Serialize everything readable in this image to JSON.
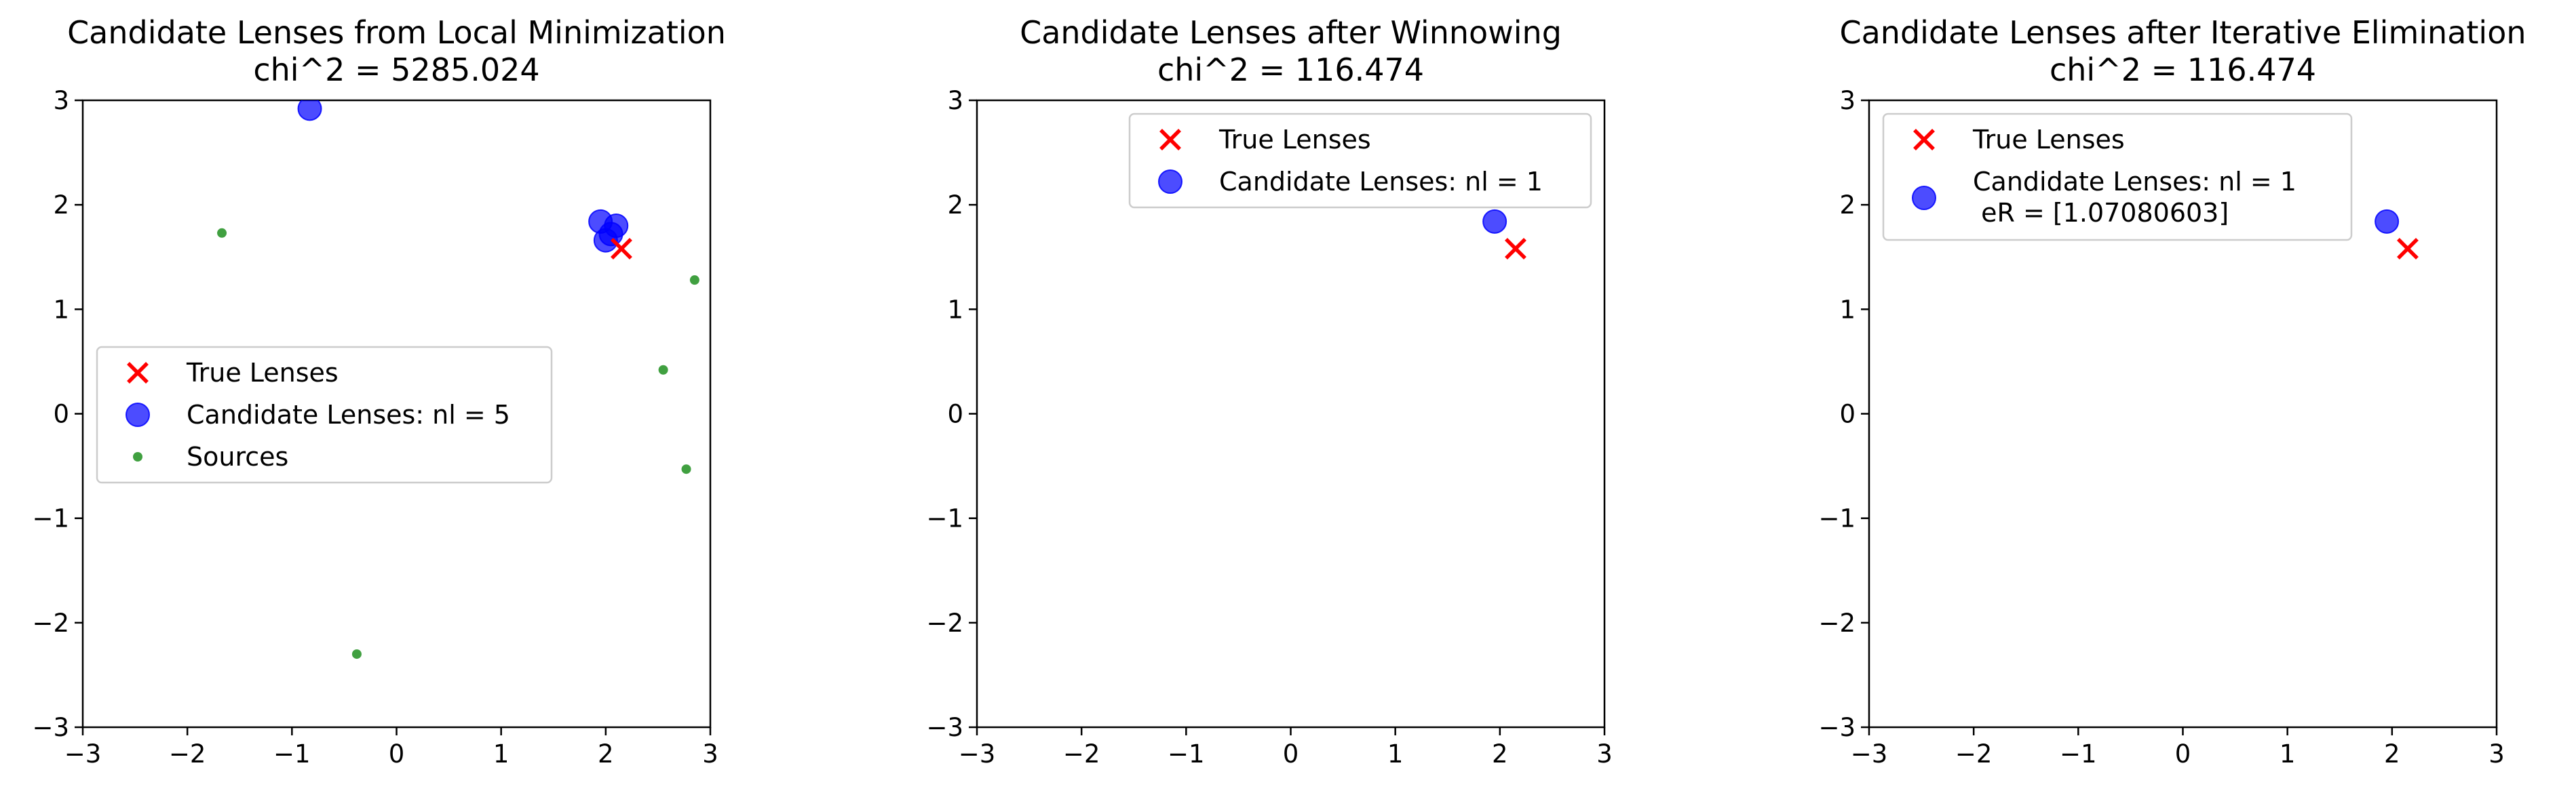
{
  "chart_data": [
    {
      "type": "scatter",
      "title": "Candidate Lenses from Local Minimization\nchi^2 = 5285.024",
      "xlim": [
        -3,
        3
      ],
      "ylim": [
        -3,
        3
      ],
      "xticks": [
        -3,
        -2,
        -1,
        0,
        1,
        2,
        3
      ],
      "yticks": [
        -3,
        -2,
        -1,
        0,
        1,
        2,
        3
      ],
      "grid": false,
      "legend_placement": "center-left",
      "series": [
        {
          "name": "True Lenses",
          "marker": "x",
          "color": "#ff0000",
          "points": [
            [
              2.15,
              1.58
            ]
          ]
        },
        {
          "name": "Candidate Lenses: nl = 5",
          "marker": "o",
          "color": "#0000ff",
          "size": "large",
          "points": [
            [
              -0.83,
              2.92
            ],
            [
              1.95,
              1.84
            ],
            [
              2.1,
              1.8
            ],
            [
              2.0,
              1.66
            ],
            [
              2.05,
              1.72
            ]
          ]
        },
        {
          "name": "Sources",
          "marker": "o",
          "color": "#008000",
          "size": "small",
          "points": [
            [
              -1.67,
              1.73
            ],
            [
              2.85,
              1.28
            ],
            [
              2.55,
              0.42
            ],
            [
              2.77,
              -0.53
            ],
            [
              -0.38,
              -2.3
            ]
          ]
        }
      ]
    },
    {
      "type": "scatter",
      "title": "Candidate Lenses after Winnowing\nchi^2 = 116.474",
      "xlim": [
        -3,
        3
      ],
      "ylim": [
        -3,
        3
      ],
      "xticks": [
        -3,
        -2,
        -1,
        0,
        1,
        2,
        3
      ],
      "yticks": [
        -3,
        -2,
        -1,
        0,
        1,
        2,
        3
      ],
      "grid": false,
      "legend_placement": "upper-right",
      "series": [
        {
          "name": "True Lenses",
          "marker": "x",
          "color": "#ff0000",
          "points": [
            [
              2.15,
              1.58
            ]
          ]
        },
        {
          "name": "Candidate Lenses: nl = 1",
          "marker": "o",
          "color": "#0000ff",
          "size": "large",
          "points": [
            [
              1.95,
              1.84
            ]
          ]
        }
      ]
    },
    {
      "type": "scatter",
      "title": "Candidate Lenses after Iterative Elimination\nchi^2 = 116.474",
      "xlim": [
        -3,
        3
      ],
      "ylim": [
        -3,
        3
      ],
      "xticks": [
        -3,
        -2,
        -1,
        0,
        1,
        2,
        3
      ],
      "yticks": [
        -3,
        -2,
        -1,
        0,
        1,
        2,
        3
      ],
      "grid": false,
      "legend_placement": "upper-left",
      "series": [
        {
          "name": "True Lenses",
          "marker": "x",
          "color": "#ff0000",
          "points": [
            [
              2.15,
              1.58
            ]
          ]
        },
        {
          "name": "Candidate Lenses: nl = 1\n eR = [1.07080603]",
          "marker": "o",
          "color": "#0000ff",
          "size": "large",
          "points": [
            [
              1.95,
              1.84
            ]
          ]
        }
      ]
    }
  ]
}
